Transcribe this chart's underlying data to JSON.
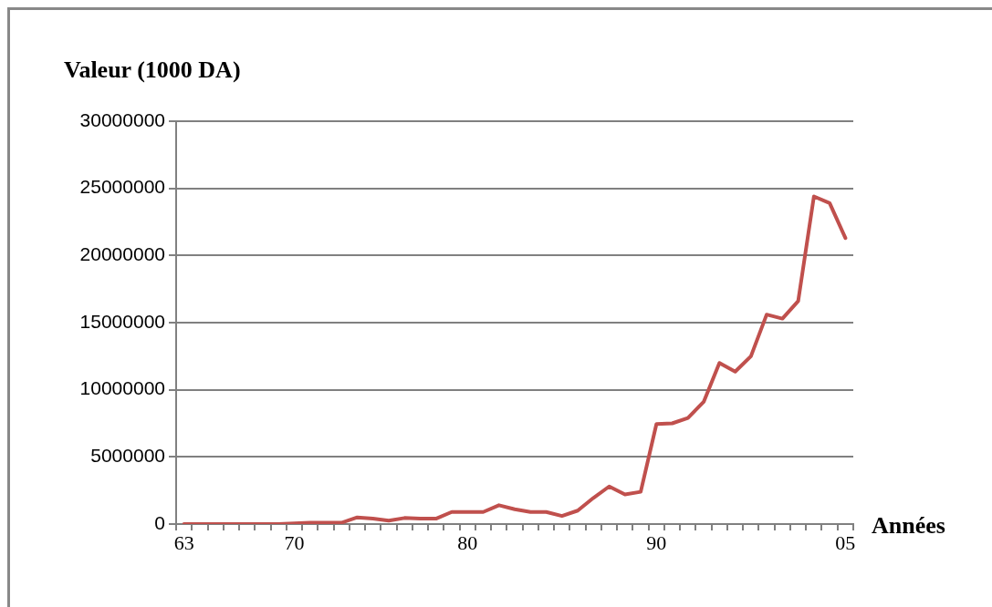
{
  "chart_data": {
    "type": "line",
    "ylabel": "Valeur (1000 DA)",
    "xlabel": "Années",
    "categories": [
      "63",
      null,
      null,
      null,
      null,
      null,
      null,
      "70",
      null,
      null,
      null,
      null,
      null,
      null,
      null,
      null,
      null,
      null,
      "80",
      null,
      null,
      null,
      null,
      null,
      null,
      null,
      null,
      null,
      null,
      null,
      "90",
      null,
      null,
      null,
      null,
      null,
      null,
      null,
      null,
      null,
      null,
      null,
      "05"
    ],
    "series": [
      {
        "color": "#c0504d",
        "values": [
          0,
          0,
          0,
          0,
          0,
          0,
          0,
          50000,
          100000,
          100000,
          100000,
          500000,
          400000,
          250000,
          450000,
          400000,
          400000,
          900000,
          900000,
          900000,
          1400000,
          1100000,
          900000,
          900000,
          600000,
          1000000,
          1950000,
          2800000,
          2200000,
          2400000,
          7450000,
          7500000,
          7900000,
          9100000,
          12000000,
          11350000,
          12500000,
          15600000,
          15300000,
          16600000,
          24400000,
          23900000,
          21300000
        ]
      }
    ],
    "ylim": [
      0,
      30000000
    ],
    "yticks": [
      0,
      5000000,
      10000000,
      15000000,
      20000000,
      25000000,
      30000000
    ],
    "grid": "y",
    "legend": false,
    "marker": "none",
    "line_style": "solid"
  }
}
